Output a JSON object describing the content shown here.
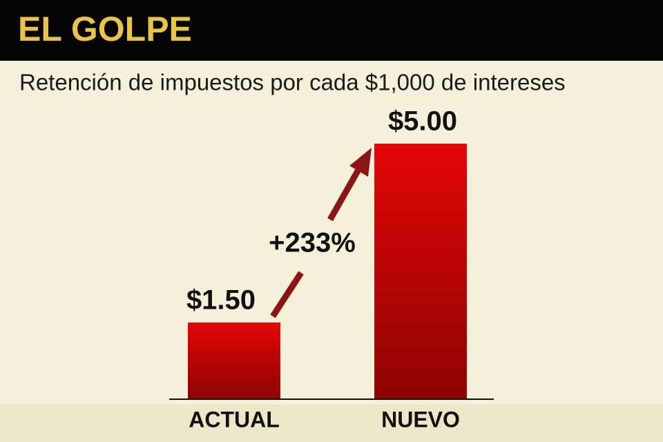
{
  "chart_data": {
    "type": "bar",
    "title": "EL GOLPE",
    "subtitle": "Retención de impuestos por cada $1,000 de intereses",
    "categories": [
      "ACTUAL",
      "NUEVO"
    ],
    "values": [
      1.5,
      5.0
    ],
    "value_labels": [
      "$1.50",
      "$5.00"
    ],
    "annotation": "+233%",
    "color": "#d40000"
  }
}
